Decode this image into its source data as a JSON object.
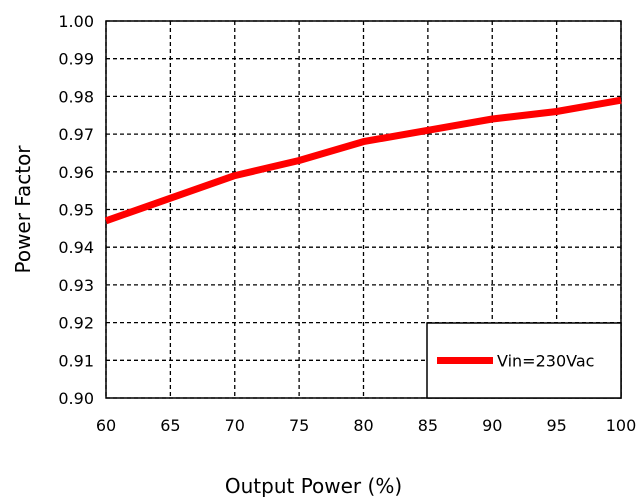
{
  "chart_data": {
    "type": "line",
    "xlabel": "Output Power (%)",
    "ylabel": "Power Factor",
    "xlim": [
      60,
      100
    ],
    "ylim": [
      0.9,
      1.0
    ],
    "xticks": [
      "60",
      "65",
      "70",
      "75",
      "80",
      "85",
      "90",
      "95",
      "100"
    ],
    "yticks": [
      "0.90",
      "0.91",
      "0.92",
      "0.93",
      "0.94",
      "0.95",
      "0.96",
      "0.97",
      "0.98",
      "0.99",
      "1.00"
    ],
    "grid": true,
    "legend_position": "bottom-right",
    "series": [
      {
        "name": "Vin=230Vac",
        "color": "#ff0000",
        "x": [
          60,
          65,
          70,
          75,
          80,
          85,
          90,
          95,
          100
        ],
        "y": [
          0.947,
          0.953,
          0.959,
          0.963,
          0.968,
          0.971,
          0.974,
          0.976,
          0.979
        ]
      }
    ]
  }
}
